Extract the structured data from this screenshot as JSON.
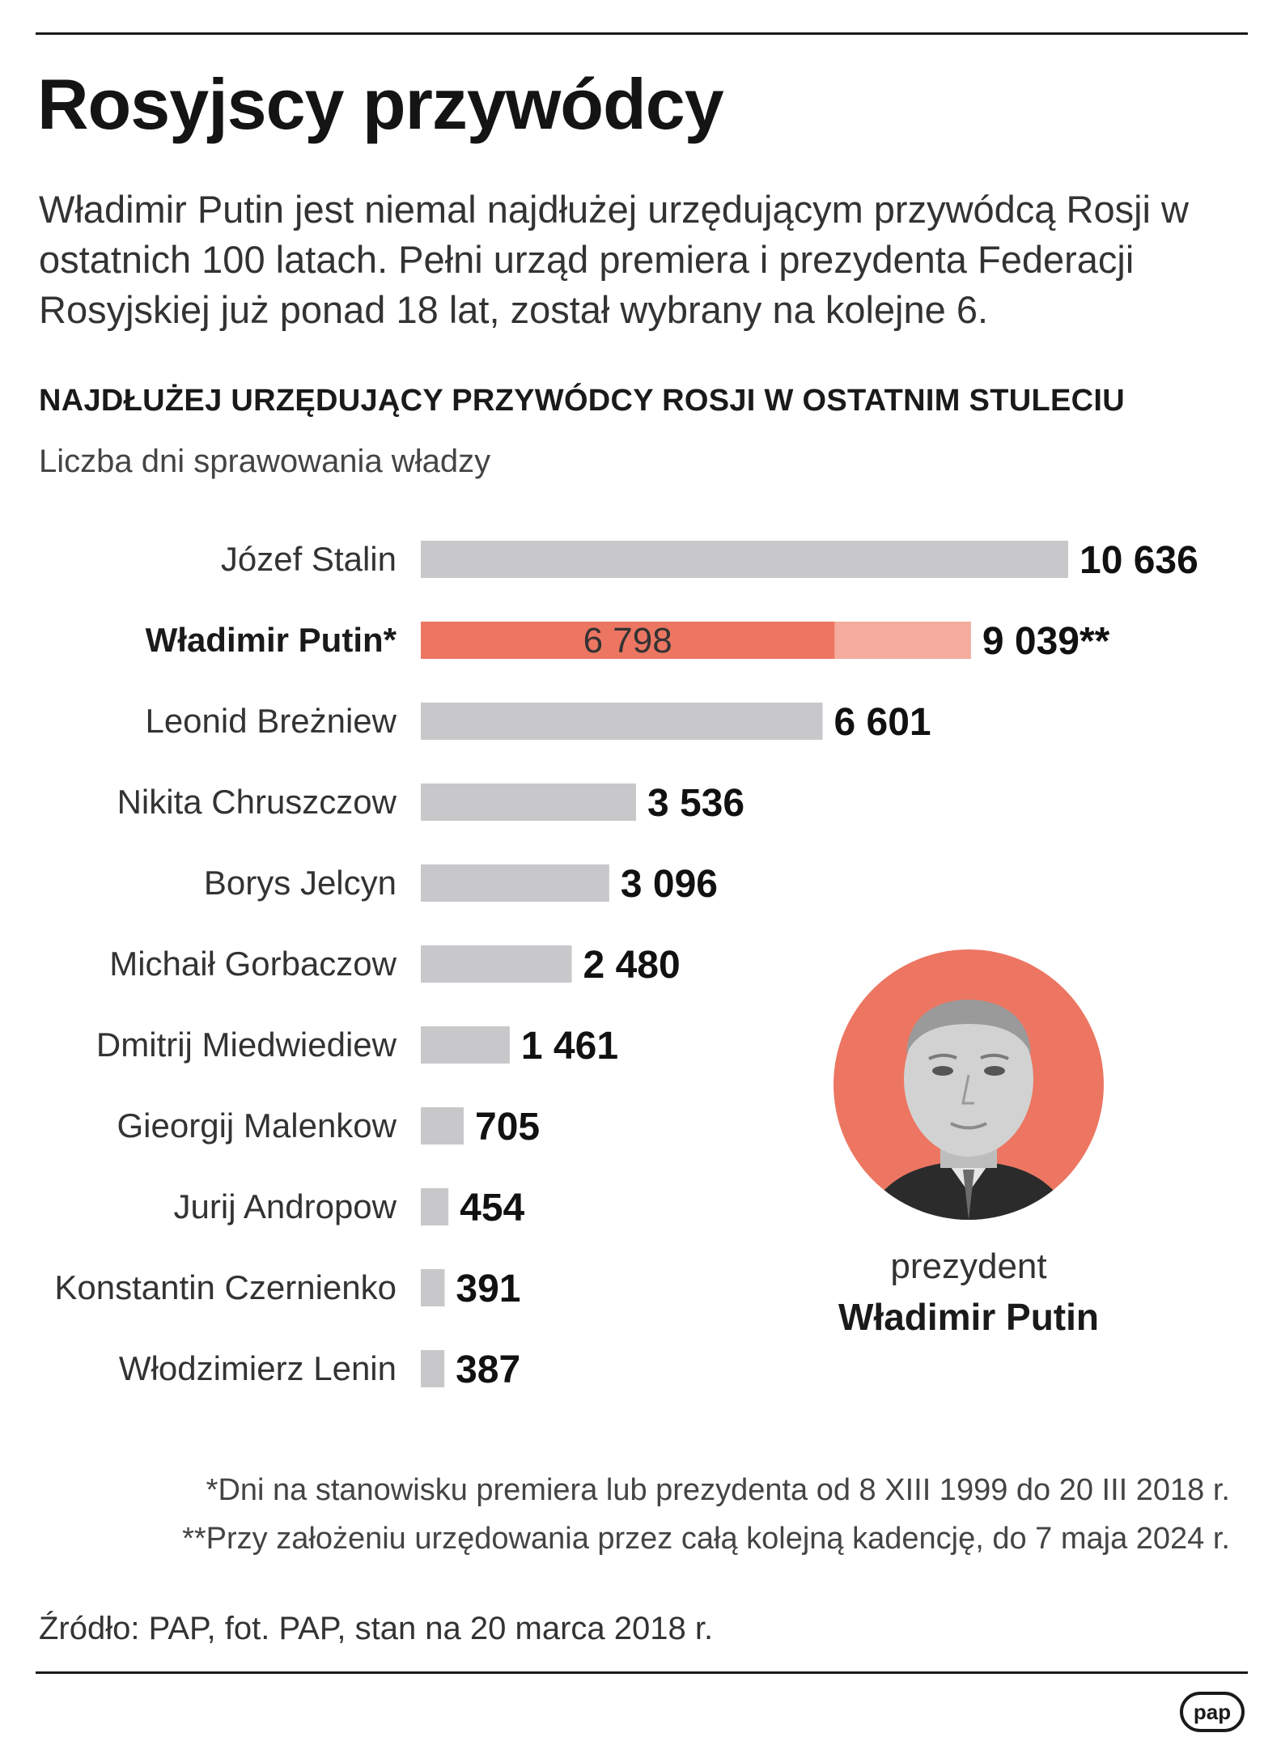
{
  "header": {
    "title": "Rosyjscy przywódcy",
    "lead": "Władimir Putin jest niemal najdłużej urzędującym przywódcą Rosji w ostatnich 100 latach. Pełni urząd premiera i prezydenta Federacji Rosyjskiej już ponad 18 lat, został wybrany na kolejne 6."
  },
  "colors": {
    "bar_gray": "#c8c8ca",
    "highlight": "#ec7662",
    "highlight_light": "#f4ad9d",
    "portrait_bg": "#ec7662"
  },
  "chart_data": {
    "type": "bar",
    "orientation": "horizontal",
    "title": "NAJDŁUŻEJ URZĘDUJĄCY PRZYWÓDCY ROSJI W OSTATNIM STULECIU",
    "subtitle": "Liczba dni sprawowania władzy",
    "xlim": [
      0,
      10636
    ],
    "grid": false,
    "highlighted_category": "Władimir Putin*",
    "categories": [
      "Józef Stalin",
      "Władimir Putin*",
      "Leonid Breżniew",
      "Nikita Chruszczow",
      "Borys Jelcyn",
      "Michaił Gorbaczow",
      "Dmitrij Miedwiediew",
      "Gieorgij Malenkow",
      "Jurij Andropow",
      "Konstantin Czernienko",
      "Włodzimierz Lenin"
    ],
    "values": [
      10636,
      9039,
      6601,
      3536,
      3096,
      2480,
      1461,
      705,
      454,
      391,
      387
    ],
    "value_labels": [
      "10 636",
      "9 039**",
      "6 601",
      "3 536",
      "3 096",
      "2 480",
      "1 461",
      "705",
      "454",
      "391",
      "387"
    ],
    "putin_days_served": 6798,
    "putin_days_served_label": "6 798"
  },
  "portrait": {
    "caption_role": "prezydent",
    "caption_name": "Władimir Putin"
  },
  "footnotes": [
    "*Dni na stanowisku premiera lub prezydenta od 8 XIII 1999 do 20 III 2018 r.",
    "**Przy założeniu urzędowania przez całą kolejną kadencję, do 7 maja 2024 r."
  ],
  "source": "Źródło: PAP, fot. PAP, stan na 20 marca 2018 r.",
  "logo_text": "pap"
}
